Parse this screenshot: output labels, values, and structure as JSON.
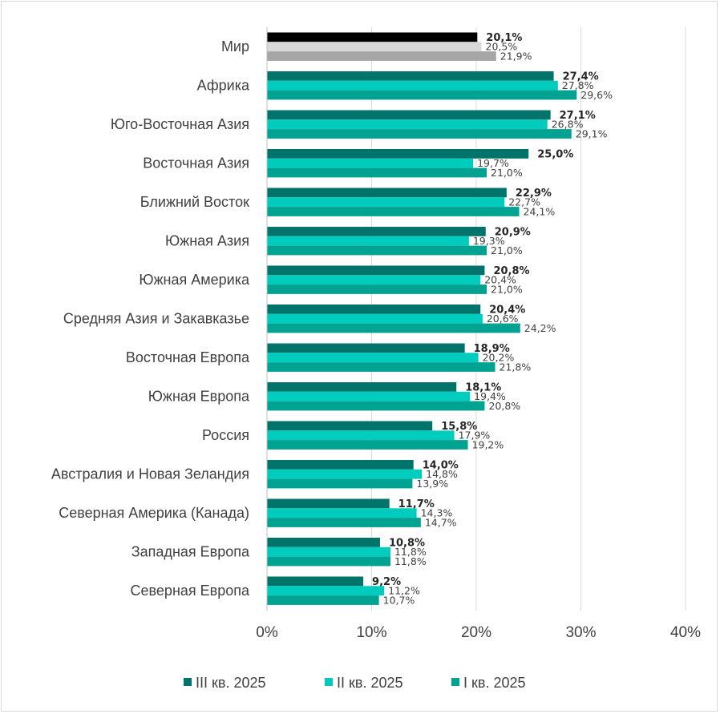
{
  "chart_data": {
    "type": "bar",
    "orientation": "horizontal",
    "categories": [
      "Мир",
      "Африка",
      "Юго-Восточная Азия",
      "Восточная Азия",
      "Ближний Восток",
      "Южная Азия",
      "Южная Америка",
      "Средняя Азия и Закавказье",
      "Восточная Европа",
      "Южная Европа",
      "Россия",
      "Австралия и Новая Зеландия",
      "Северная Америка (Канада)",
      "Западная Европа",
      "Северная Европа"
    ],
    "series": [
      {
        "name": "III кв. 2025",
        "color": "#00736a",
        "world_color": "#000000",
        "values": [
          20.1,
          27.4,
          27.1,
          25.0,
          22.9,
          20.9,
          20.8,
          20.4,
          18.9,
          18.1,
          15.8,
          14.0,
          11.7,
          10.8,
          9.2
        ],
        "labels": [
          "20,1%",
          "27,4%",
          "27,1%",
          "25,0%",
          "22,9%",
          "20,9%",
          "20,8%",
          "20,4%",
          "18,9%",
          "18,1%",
          "15,8%",
          "14,0%",
          "11,7%",
          "10,8%",
          "9,2%"
        ]
      },
      {
        "name": "II кв. 2025",
        "color": "#00ccbe",
        "world_color": "#d9d9d9",
        "values": [
          20.5,
          27.8,
          26.8,
          19.7,
          22.7,
          19.3,
          20.4,
          20.6,
          20.2,
          19.4,
          17.9,
          14.8,
          14.3,
          11.8,
          11.2
        ],
        "labels": [
          "20,5%",
          "27,8%",
          "26,8%",
          "19,7%",
          "22,7%",
          "19,3%",
          "20,4%",
          "20,6%",
          "20,2%",
          "19,4%",
          "17,9%",
          "14,8%",
          "14,3%",
          "11,8%",
          "11,2%"
        ]
      },
      {
        "name": "I кв. 2025",
        "color": "#00a392",
        "world_color": "#a6a6a6",
        "values": [
          21.9,
          29.6,
          29.1,
          21.0,
          24.1,
          21.0,
          21.0,
          24.2,
          21.8,
          20.8,
          19.2,
          13.9,
          14.7,
          11.8,
          10.7
        ],
        "labels": [
          "21,9%",
          "29,6%",
          "29,1%",
          "21,0%",
          "24,1%",
          "21,0%",
          "21,0%",
          "24,2%",
          "21,8%",
          "20,8%",
          "19,2%",
          "13,9%",
          "14,7%",
          "11,8%",
          "10,7%"
        ]
      }
    ],
    "xlim": [
      0,
      40
    ],
    "xticks": [
      0,
      10,
      20,
      30,
      40
    ],
    "xtick_labels": [
      "0%",
      "10%",
      "20%",
      "30%",
      "40%"
    ],
    "grid": "vertical",
    "legend_position": "bottom"
  }
}
